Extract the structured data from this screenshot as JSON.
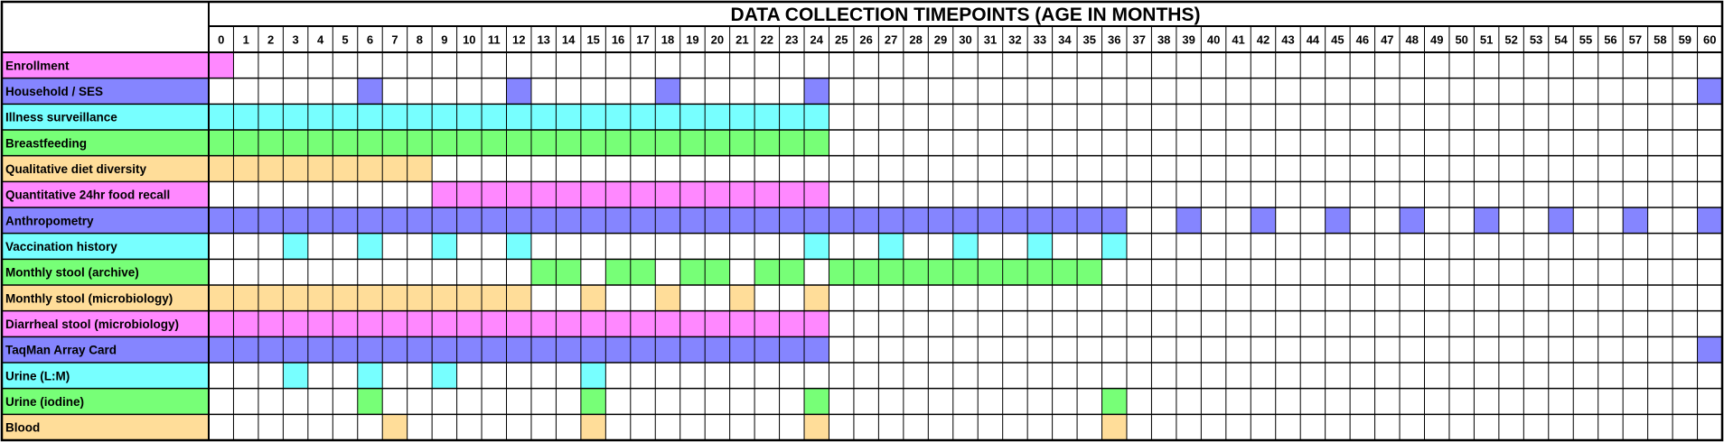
{
  "chart_data": {
    "type": "table",
    "title": "DATA COLLECTION TIMEPOINTS (AGE IN MONTHS)",
    "months": [
      "0",
      "1",
      "2",
      "3",
      "4",
      "5",
      "6",
      "7",
      "8",
      "9",
      "10",
      "11",
      "12",
      "13",
      "14",
      "15",
      "16",
      "17",
      "18",
      "19",
      "20",
      "21",
      "22",
      "23",
      "24",
      "25",
      "26",
      "27",
      "28",
      "29",
      "30",
      "31",
      "32",
      "33",
      "34",
      "35",
      "36",
      "37",
      "38",
      "39",
      "40",
      "41",
      "42",
      "43",
      "44",
      "45",
      "46",
      "47",
      "48",
      "49",
      "50",
      "51",
      "52",
      "53",
      "54",
      "55",
      "56",
      "57",
      "58",
      "59",
      "60"
    ],
    "colors": {
      "pink": "#ff88ff",
      "blue": "#8585ff",
      "cyan": "#77ffff",
      "green": "#77ff77",
      "tan": "#ffdd99",
      "grid": "#000000",
      "empty": "#ffffff"
    },
    "rows": [
      {
        "label": "Enrollment",
        "color": "pink",
        "months": [
          0
        ]
      },
      {
        "label": "Household / SES",
        "color": "blue",
        "months": [
          6,
          12,
          18,
          24,
          60
        ]
      },
      {
        "label": "Illness surveillance",
        "color": "cyan",
        "range": [
          0,
          24
        ]
      },
      {
        "label": "Breastfeeding",
        "color": "green",
        "range": [
          0,
          24
        ]
      },
      {
        "label": "Qualitative diet diversity",
        "color": "tan",
        "range": [
          0,
          8
        ]
      },
      {
        "label": "Quantitative 24hr food recall",
        "color": "pink",
        "range": [
          9,
          24
        ]
      },
      {
        "label": "Anthropometry",
        "color": "blue",
        "range": [
          0,
          36
        ],
        "months": [
          39,
          42,
          45,
          48,
          51,
          54,
          57,
          60
        ]
      },
      {
        "label": "Vaccination history",
        "color": "cyan",
        "months": [
          3,
          6,
          9,
          12,
          24,
          27,
          30,
          33,
          36
        ]
      },
      {
        "label": "Monthly stool (archive)",
        "color": "green",
        "months": [
          13,
          14,
          16,
          17,
          19,
          20,
          22,
          23
        ],
        "range": [
          25,
          35
        ]
      },
      {
        "label": "Monthly stool (microbiology)",
        "color": "tan",
        "range": [
          0,
          12
        ],
        "months": [
          15,
          18,
          21,
          24
        ]
      },
      {
        "label": "Diarrheal stool (microbiology)",
        "color": "pink",
        "range": [
          0,
          24
        ]
      },
      {
        "label": "TaqMan Array Card",
        "color": "blue",
        "range": [
          0,
          24
        ],
        "months": [
          60
        ]
      },
      {
        "label": "Urine (L:M)",
        "color": "cyan",
        "months": [
          3,
          6,
          9,
          15
        ]
      },
      {
        "label": "Urine (iodine)",
        "color": "green",
        "months": [
          6,
          15,
          24,
          36
        ]
      },
      {
        "label": "Blood",
        "color": "tan",
        "months": [
          7,
          15,
          24,
          36
        ]
      }
    ]
  }
}
